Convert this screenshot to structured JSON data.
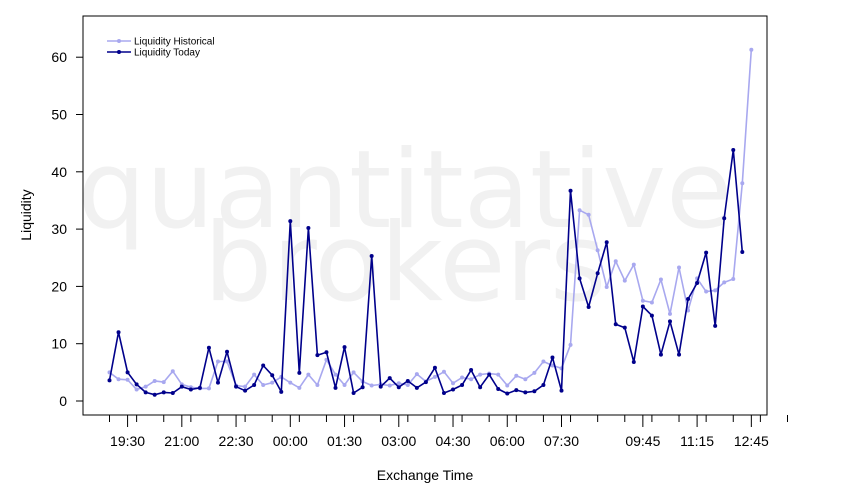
{
  "watermark": {
    "line1": "quantitative",
    "line2": "brokers"
  },
  "chart_data": {
    "type": "line",
    "xlabel": "Exchange Time",
    "ylabel": "Liquidity",
    "ylim": [
      -2,
      67
    ],
    "yticks": [
      0,
      10,
      20,
      30,
      40,
      50,
      60
    ],
    "x_start": "19:00",
    "x_end": "14:00",
    "interval_minutes": 15,
    "xtick_labels": [
      "19:30",
      "21:00",
      "22:30",
      "00:00",
      "01:30",
      "03:00",
      "04:30",
      "06:00",
      "07:30",
      "09:45",
      "11:15",
      "12:45"
    ],
    "legend_position": "top-left",
    "colors": {
      "historical": "#a8a8ef",
      "today": "#00008b"
    },
    "series": [
      {
        "name": "Liquidity Historical",
        "values": [
          5,
          3.8,
          3.7,
          2,
          2.5,
          3.5,
          3.3,
          5.2,
          2.9,
          2.4,
          2.2,
          2.2,
          6.9,
          6.9,
          2.7,
          2.5,
          4.6,
          2.8,
          3.2,
          4.2,
          3.2,
          2.3,
          4.6,
          2.8,
          7.2,
          4.6,
          2.8,
          5,
          3.4,
          2.7,
          2.9,
          2.7,
          3.1,
          2.8,
          4.7,
          3.4,
          4.2,
          5.1,
          3.1,
          4.1,
          3.8,
          4.6,
          4.8,
          4.6,
          2.7,
          4.4,
          3.8,
          4.9,
          6.9,
          6.2,
          5.7,
          9.8,
          33.3,
          32.5,
          26.3,
          19.9,
          24.4,
          21,
          23.8,
          17.5,
          17.2,
          21.2,
          15.2,
          23.3,
          15.8,
          21.4,
          19.1,
          19.3,
          20.7,
          21.3,
          38,
          61.3
        ]
      },
      {
        "name": "Liquidity Today",
        "values": [
          3.6,
          12,
          5,
          2.9,
          1.5,
          1.1,
          1.5,
          1.4,
          2.5,
          2,
          2.3,
          9.3,
          3.2,
          8.6,
          2.5,
          1.8,
          2.8,
          6.2,
          4.5,
          1.6,
          31.4,
          4.9,
          30.2,
          8,
          8.5,
          2.3,
          9.4,
          1.4,
          2.4,
          25.3,
          2.5,
          4,
          2.4,
          3.5,
          2.3,
          3.3,
          5.8,
          1.4,
          2,
          2.8,
          5.4,
          2.4,
          4.6,
          2.1,
          1.3,
          1.9,
          1.5,
          1.7,
          2.8,
          7.6,
          1.8,
          36.7,
          21.4,
          16.4,
          22.3,
          27.7,
          13.4,
          12.8,
          6.8,
          16.5,
          14.9,
          8.1,
          13.9,
          8.1,
          17.8,
          20.6,
          25.9,
          13.1,
          31.9,
          43.8,
          26
        ]
      }
    ]
  }
}
